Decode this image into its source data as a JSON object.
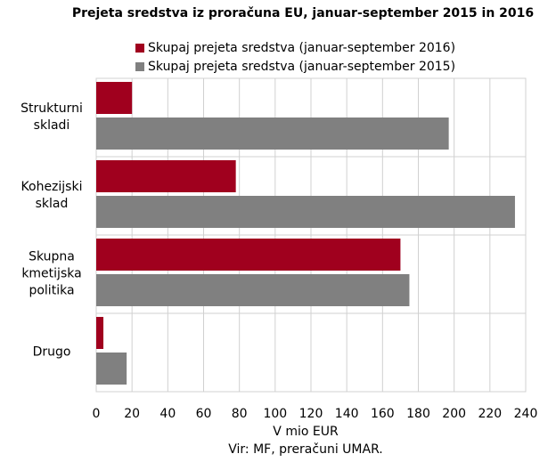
{
  "chart_data": {
    "type": "hbar",
    "title": "Prejeta sredstva iz proračuna EU, januar-september 2015 in 2016",
    "categories": [
      "Strukturni skladi",
      "Kohezijski sklad",
      "Skupna kmetijska politika",
      "Drugo"
    ],
    "series": [
      {
        "name": "Skupaj prejeta sredstva (januar-september 2016)",
        "color": "#a0001e",
        "values": [
          20,
          78,
          170,
          4
        ]
      },
      {
        "name": "Skupaj prejeta sredstva (januar-september 2015)",
        "color": "#808080",
        "values": [
          197,
          234,
          175,
          17
        ]
      }
    ],
    "xlim": [
      0,
      240
    ],
    "xticks": [
      0,
      20,
      40,
      60,
      80,
      100,
      120,
      140,
      160,
      180,
      200,
      220,
      240
    ],
    "xlabel": "V mio EUR",
    "source": "Vir: MF, preračuni UMAR.",
    "grid": true
  }
}
